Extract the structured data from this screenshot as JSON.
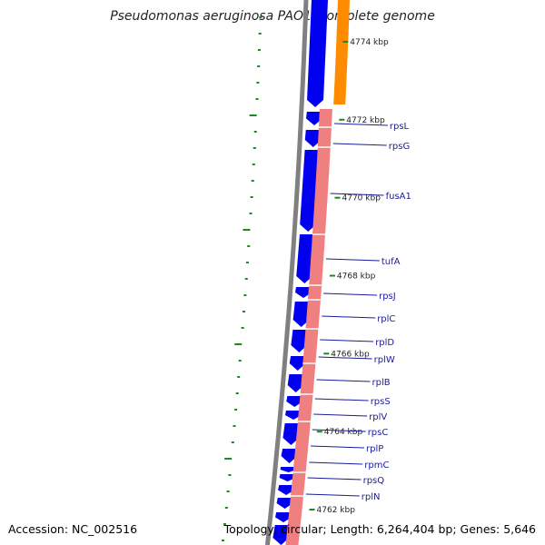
{
  "title": "Pseudomonas aeruginosa PAO1, complete genome",
  "accession": "Accession: NC_002516",
  "summary": "Topology: circular; Length: 6,264,404 bp; Genes: 5,646",
  "colors": {
    "cds_forward": "#0000ee",
    "rna_reverse": "#f08080",
    "orf_track": "#ff8c00",
    "backbone": "#808080",
    "gc_marks": "#1a8a1a",
    "gene_label": "#1a1a9a"
  },
  "ticks": [
    {
      "kbp": 4774,
      "label": "4774 kbp"
    },
    {
      "kbp": 4772,
      "label": "4772 kbp"
    },
    {
      "kbp": 4770,
      "label": "4770 kbp"
    },
    {
      "kbp": 4768,
      "label": "4768 kbp"
    },
    {
      "kbp": 4766,
      "label": "4766 kbp"
    },
    {
      "kbp": 4764,
      "label": "4764 kbp"
    },
    {
      "kbp": 4762,
      "label": "4762 kbp"
    }
  ],
  "genes": [
    {
      "name": "rpsL"
    },
    {
      "name": "rpsG"
    },
    {
      "name": "fusA1"
    },
    {
      "name": "tufA"
    },
    {
      "name": "rpsJ"
    },
    {
      "name": "rplC"
    },
    {
      "name": "rplD"
    },
    {
      "name": "rplW"
    },
    {
      "name": "rplB"
    },
    {
      "name": "rpsS"
    },
    {
      "name": "rplV"
    },
    {
      "name": "rpsC"
    },
    {
      "name": "rplP"
    },
    {
      "name": "rpmC"
    },
    {
      "name": "rpsQ"
    },
    {
      "name": "rplN"
    }
  ]
}
